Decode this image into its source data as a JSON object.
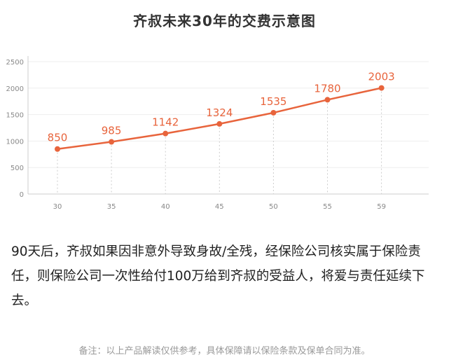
{
  "chart_data": {
    "type": "line",
    "title": "齐叔未来30年的交费示意图",
    "x": [
      "30",
      "35",
      "40",
      "45",
      "50",
      "55",
      "59"
    ],
    "series": [
      {
        "values": [
          850,
          985,
          1142,
          1324,
          1535,
          1780,
          2003
        ]
      }
    ],
    "ylim": [
      0,
      2500
    ],
    "yticks": [
      0,
      500,
      1000,
      1500,
      2000,
      2500
    ],
    "xlabel": "",
    "ylabel": "",
    "grid": true,
    "line_color": "#e8643c",
    "data_labels": true
  },
  "description": "90天后，齐叔如果因非意外导致身故/全残，经保险公司核实属于保险责任，则保险公司一次性给付100万给到齐叔的受益人，将爱与责任延续下去。",
  "footnote": "备注：以上产品解读仅供参考，具体保障请以保险条款及保单合同为准。"
}
